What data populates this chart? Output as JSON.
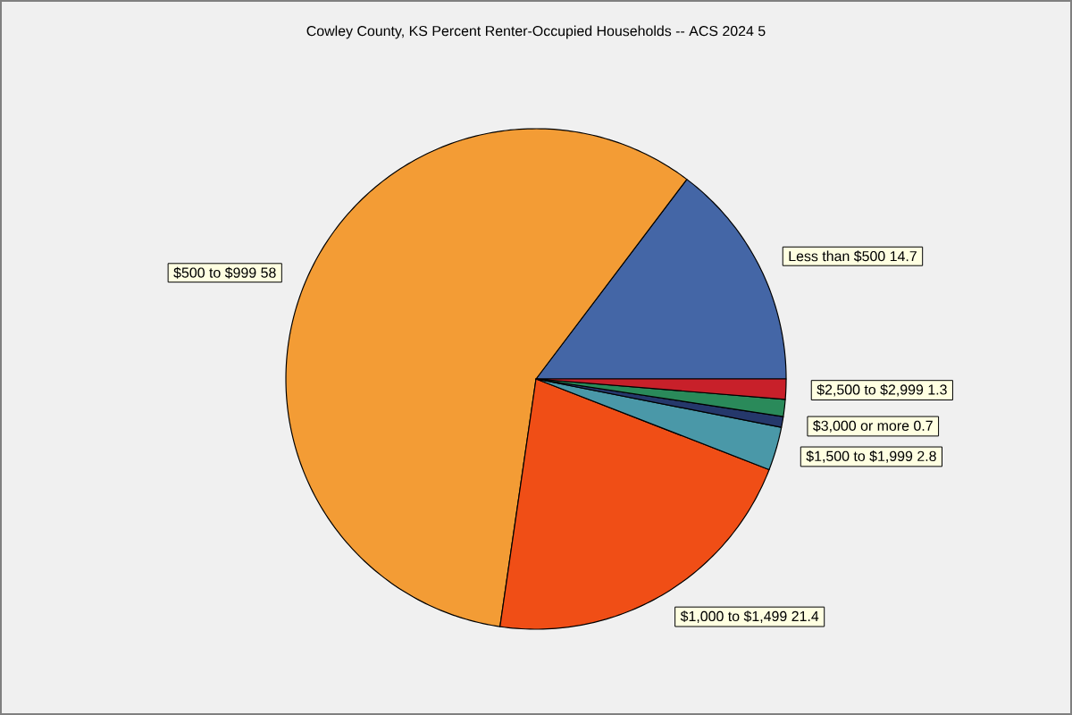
{
  "chart_data": {
    "type": "pie",
    "title": "Cowley County, KS Percent Renter-Occupied Households -- ACS 2024 5",
    "categories": [
      "Less than $500",
      "$500 to $999",
      "$1,000 to $1,499",
      "$1,500 to $1,999",
      "$3,000 or more",
      null,
      "$2,500 to $2,999"
    ],
    "values": [
      14.7,
      58,
      21.4,
      2.8,
      0.7,
      1.1,
      1.3
    ],
    "value_labels": [
      "14.7",
      "58",
      "21.4",
      "2.8",
      "0.7",
      null,
      "1.3"
    ],
    "colors": [
      "#4466a6",
      "#f39c35",
      "#f04e16",
      "#4a98a8",
      "#25386b",
      "#2a8a5a",
      "#c8202a"
    ]
  }
}
